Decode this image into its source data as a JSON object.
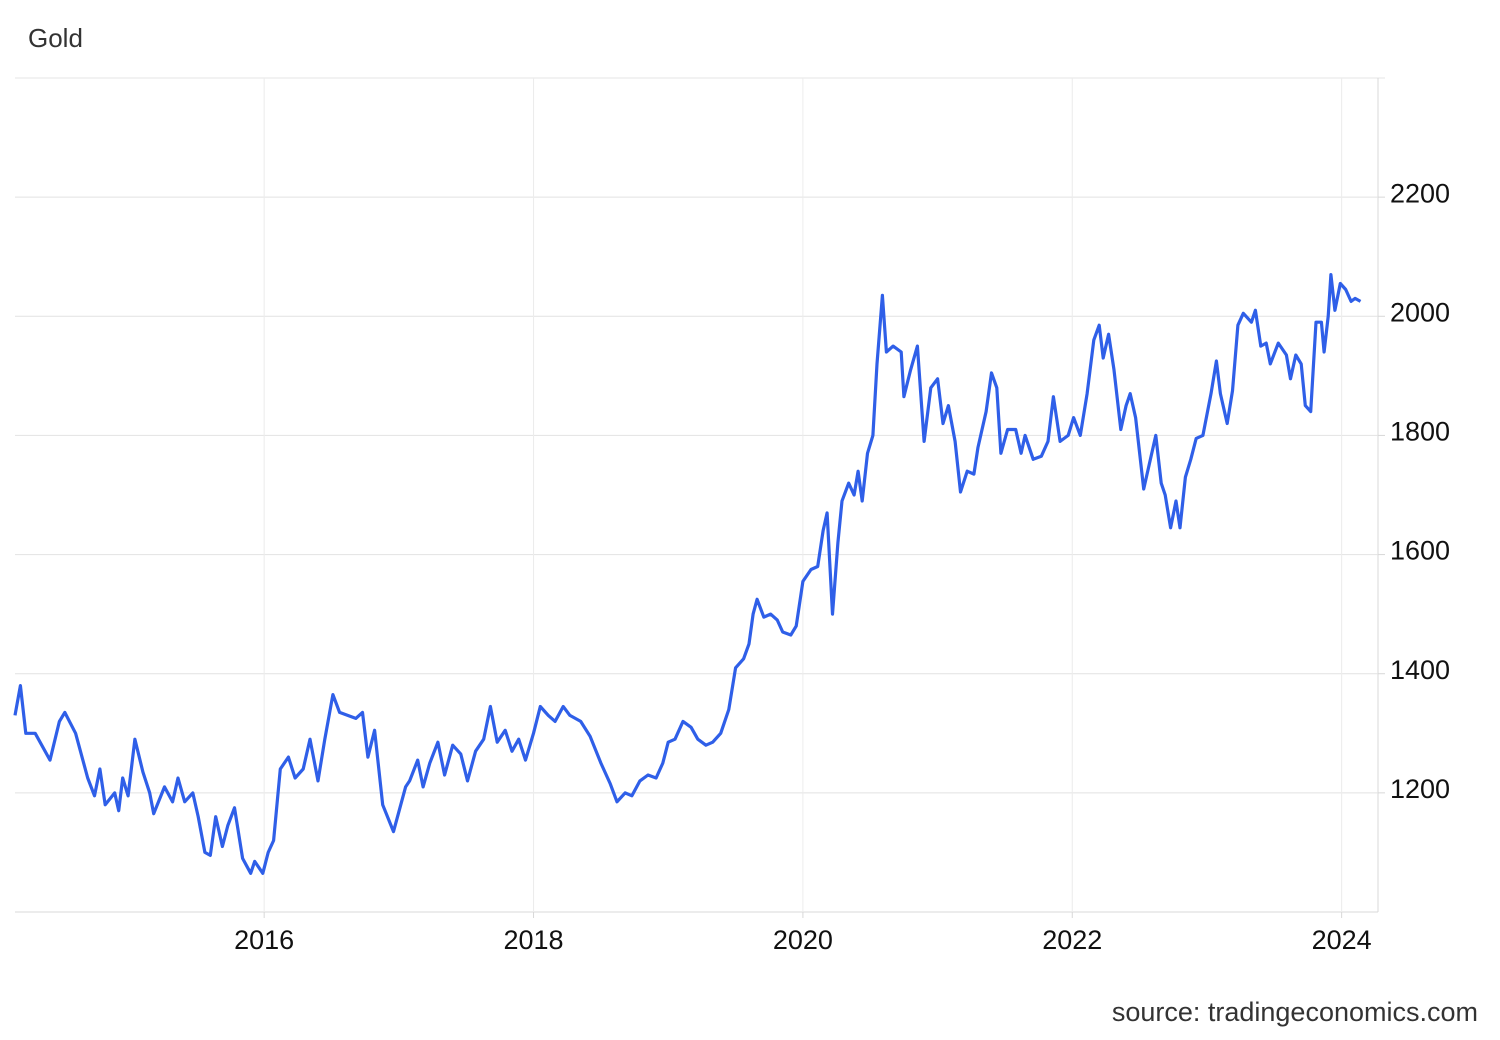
{
  "chart_data": {
    "type": "line",
    "title": "Gold",
    "source": "source: tradingeconomics.com",
    "xlim": [
      2014.15,
      2024.27
    ],
    "xticks": [
      2016,
      2018,
      2020,
      2022,
      2024
    ],
    "ylim": [
      1000,
      2400
    ],
    "yticks": [
      1200,
      1400,
      1600,
      1800,
      2000,
      2200
    ],
    "grid": true,
    "x": [
      2014.15,
      2014.19,
      2014.23,
      2014.3,
      2014.41,
      2014.48,
      2014.52,
      2014.6,
      2014.69,
      2014.74,
      2014.78,
      2014.82,
      2014.89,
      2014.92,
      2014.95,
      2014.99,
      2015.04,
      2015.1,
      2015.15,
      2015.18,
      2015.26,
      2015.32,
      2015.36,
      2015.41,
      2015.47,
      2015.51,
      2015.56,
      2015.6,
      2015.64,
      2015.69,
      2015.73,
      2015.78,
      2015.84,
      2015.9,
      2015.93,
      2015.99,
      2016.03,
      2016.07,
      2016.12,
      2016.18,
      2016.23,
      2016.29,
      2016.34,
      2016.4,
      2016.45,
      2016.51,
      2016.56,
      2016.62,
      2016.68,
      2016.73,
      2016.77,
      2016.82,
      2016.88,
      2016.96,
      2017.05,
      2017.08,
      2017.14,
      2017.18,
      2017.23,
      2017.29,
      2017.34,
      2017.4,
      2017.46,
      2017.51,
      2017.57,
      2017.63,
      2017.68,
      2017.73,
      2017.79,
      2017.84,
      2017.89,
      2017.94,
      2018.0,
      2018.05,
      2018.11,
      2018.16,
      2018.22,
      2018.27,
      2018.35,
      2018.42,
      2018.5,
      2018.57,
      2018.62,
      2018.68,
      2018.73,
      2018.79,
      2018.85,
      2018.91,
      2018.96,
      2019.0,
      2019.05,
      2019.11,
      2019.17,
      2019.22,
      2019.28,
      2019.33,
      2019.39,
      2019.45,
      2019.5,
      2019.56,
      2019.6,
      2019.63,
      2019.66,
      2019.71,
      2019.76,
      2019.81,
      2019.85,
      2019.91,
      2019.95,
      2020.0,
      2020.06,
      2020.11,
      2020.15,
      2020.18,
      2020.22,
      2020.26,
      2020.29,
      2020.34,
      2020.38,
      2020.41,
      2020.44,
      2020.48,
      2020.52,
      2020.55,
      2020.59,
      2020.62,
      2020.67,
      2020.73,
      2020.75,
      2020.8,
      2020.85,
      2020.9,
      2020.95,
      2021.0,
      2021.04,
      2021.08,
      2021.13,
      2021.17,
      2021.22,
      2021.27,
      2021.3,
      2021.36,
      2021.4,
      2021.44,
      2021.47,
      2021.52,
      2021.58,
      2021.62,
      2021.65,
      2021.71,
      2021.77,
      2021.82,
      2021.86,
      2021.91,
      2021.97,
      2022.01,
      2022.06,
      2022.11,
      2022.16,
      2022.2,
      2022.23,
      2022.27,
      2022.31,
      2022.36,
      2022.4,
      2022.43,
      2022.47,
      2022.53,
      2022.58,
      2022.62,
      2022.66,
      2022.69,
      2022.73,
      2022.77,
      2022.8,
      2022.84,
      2022.88,
      2022.92,
      2022.97,
      2023.03,
      2023.07,
      2023.1,
      2023.15,
      2023.19,
      2023.23,
      2023.27,
      2023.33,
      2023.36,
      2023.4,
      2023.44,
      2023.47,
      2023.53,
      2023.59,
      2023.62,
      2023.66,
      2023.7,
      2023.73,
      2023.77,
      2023.81,
      2023.85,
      2023.87,
      2023.9,
      2023.92,
      2023.95,
      2023.99,
      2024.03,
      2024.07,
      2024.1,
      2024.14
    ],
    "series": [
      {
        "name": "Gold",
        "color": "#2f5fe8",
        "values": [
          1330,
          1380,
          1300,
          1300,
          1255,
          1320,
          1335,
          1300,
          1225,
          1195,
          1240,
          1180,
          1200,
          1170,
          1225,
          1195,
          1290,
          1235,
          1200,
          1165,
          1210,
          1185,
          1225,
          1185,
          1200,
          1160,
          1100,
          1095,
          1160,
          1110,
          1145,
          1175,
          1090,
          1065,
          1085,
          1065,
          1100,
          1120,
          1240,
          1260,
          1225,
          1240,
          1290,
          1220,
          1290,
          1365,
          1335,
          1330,
          1325,
          1335,
          1260,
          1305,
          1180,
          1135,
          1210,
          1220,
          1255,
          1210,
          1250,
          1285,
          1230,
          1280,
          1265,
          1220,
          1270,
          1290,
          1345,
          1285,
          1305,
          1270,
          1290,
          1255,
          1300,
          1345,
          1330,
          1320,
          1345,
          1330,
          1320,
          1295,
          1250,
          1215,
          1185,
          1200,
          1195,
          1220,
          1230,
          1225,
          1250,
          1285,
          1290,
          1320,
          1310,
          1290,
          1280,
          1285,
          1300,
          1340,
          1410,
          1425,
          1450,
          1500,
          1525,
          1495,
          1500,
          1490,
          1470,
          1465,
          1480,
          1555,
          1575,
          1580,
          1640,
          1670,
          1500,
          1620,
          1690,
          1720,
          1700,
          1740,
          1690,
          1770,
          1800,
          1920,
          2035,
          1940,
          1950,
          1940,
          1865,
          1910,
          1950,
          1790,
          1880,
          1895,
          1820,
          1850,
          1790,
          1705,
          1740,
          1735,
          1780,
          1840,
          1905,
          1880,
          1770,
          1810,
          1810,
          1770,
          1800,
          1760,
          1765,
          1790,
          1865,
          1790,
          1800,
          1830,
          1800,
          1870,
          1960,
          1985,
          1930,
          1970,
          1910,
          1810,
          1850,
          1870,
          1830,
          1710,
          1760,
          1800,
          1720,
          1700,
          1645,
          1690,
          1645,
          1730,
          1760,
          1795,
          1800,
          1870,
          1925,
          1870,
          1820,
          1875,
          1985,
          2005,
          1990,
          2010,
          1950,
          1955,
          1920,
          1955,
          1935,
          1895,
          1935,
          1920,
          1850,
          1840,
          1990,
          1990,
          1940,
          2000,
          2070,
          2010,
          2055,
          2045,
          2025,
          2030,
          2025
        ]
      }
    ]
  }
}
